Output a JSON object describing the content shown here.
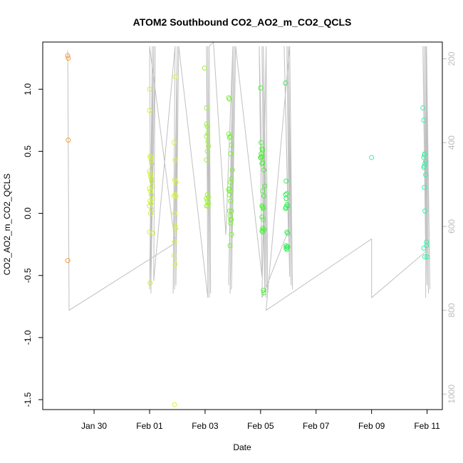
{
  "chart_data": {
    "type": "scatter",
    "title": "ATOM2 Southbound CO2_AO2_m_CO2_QCLS",
    "xlabel": "Date",
    "ylabel": "CO2_AO2_m_CO2_QCLS",
    "x_ticks": [
      "Jan 30",
      "Feb 01",
      "Feb 03",
      "Feb 05",
      "Feb 07",
      "Feb 09",
      "Feb 11"
    ],
    "x_tick_days": [
      30,
      32,
      34,
      36,
      38,
      40,
      42
    ],
    "xlim": [
      28.15,
      42.55
    ],
    "y_ticks": [
      -1.5,
      -1.0,
      -0.5,
      0.0,
      0.5,
      1.0
    ],
    "ylim": [
      -1.58,
      1.38
    ],
    "y2_ticks": [
      200,
      400,
      600,
      800,
      1000
    ],
    "y2lim": [
      1037,
      160
    ],
    "y2_color": "#bdbdbd",
    "series": [
      {
        "color": "#f59a3a",
        "x": [
          29.05,
          29.07,
          29.07,
          29.05
        ],
        "y": [
          1.27,
          1.25,
          0.59,
          -0.38
        ]
      },
      {
        "color": "#ccf03a",
        "x": [
          32.0,
          32.0,
          32.02,
          32.04,
          32.06,
          32.08,
          32.0,
          32.02,
          32.04,
          32.06,
          32.08,
          32.1,
          32.0,
          32.03,
          32.06,
          32.1,
          32.02,
          32.05,
          32.0,
          32.08,
          32.04,
          32.0,
          32.12,
          32.02
        ],
        "y": [
          1.0,
          0.83,
          0.46,
          0.45,
          0.42,
          0.4,
          0.34,
          0.32,
          0.3,
          0.28,
          0.26,
          0.22,
          0.2,
          0.18,
          0.15,
          0.12,
          0.1,
          0.08,
          0.06,
          0.03,
          0.0,
          -0.15,
          -0.16,
          -0.56
        ]
      },
      {
        "color": "#d8f43c",
        "x": [
          32.92,
          32.88,
          32.92,
          32.9,
          32.95,
          32.92,
          32.88,
          32.95,
          32.9,
          32.92,
          32.95,
          32.9,
          32.88,
          32.92,
          32.9
        ],
        "y": [
          1.1,
          0.57,
          0.43,
          0.27,
          0.25,
          0.15,
          0.14,
          0.14,
          0.0,
          -0.1,
          -0.12,
          -0.23,
          -0.34,
          -0.41,
          -1.54
        ]
      },
      {
        "color": "#9ef23c",
        "x": [
          33.98,
          34.05,
          34.05,
          34.08,
          34.1,
          34.05,
          34.1,
          34.12,
          34.08,
          34.05,
          34.08,
          34.12,
          34.05,
          34.08,
          34.12,
          34.1,
          34.05
        ],
        "y": [
          1.17,
          0.85,
          0.72,
          0.7,
          0.64,
          0.62,
          0.58,
          0.54,
          0.5,
          0.43,
          0.15,
          0.13,
          0.12,
          0.1,
          0.08,
          0.06,
          0.06
        ]
      },
      {
        "color": "#7bf03c",
        "x": [
          34.85,
          34.88,
          34.85,
          34.9,
          34.88,
          34.95,
          34.92,
          34.98,
          34.95,
          34.92,
          34.88,
          34.85,
          34.9,
          34.88,
          34.92,
          34.95,
          34.88,
          34.9,
          34.92,
          34.92,
          34.95,
          34.9,
          34.95
        ],
        "y": [
          0.93,
          0.92,
          0.64,
          0.62,
          0.61,
          0.55,
          0.48,
          0.35,
          0.28,
          0.25,
          0.2,
          0.19,
          0.18,
          0.15,
          0.1,
          0.02,
          0.02,
          -0.02,
          -0.05,
          -0.08,
          -0.17,
          -0.26,
          -0.05
        ]
      },
      {
        "color": "#4cee3c",
        "x": [
          36.0,
          36.02,
          36.05,
          36.08,
          36.02,
          36.05,
          36.0,
          36.02,
          36.08,
          36.05,
          36.12,
          36.15,
          36.08,
          36.12,
          36.05,
          36.08,
          36.1,
          36.05,
          36.1,
          36.08,
          36.12,
          36.05,
          36.08,
          36.1,
          36.12
        ],
        "y": [
          1.01,
          0.57,
          0.52,
          0.51,
          0.48,
          0.46,
          0.45,
          0.45,
          0.41,
          0.4,
          0.35,
          0.22,
          0.18,
          0.14,
          0.06,
          0.05,
          0.04,
          -0.03,
          -0.05,
          -0.12,
          -0.13,
          -0.14,
          -0.15,
          -0.62,
          -0.64
        ]
      },
      {
        "color": "#34ee55",
        "x": [
          36.9,
          36.92,
          36.95,
          36.9,
          36.92,
          36.95,
          36.98,
          36.92,
          36.9,
          36.95,
          36.98,
          36.92,
          36.95,
          36.98,
          36.92,
          36.95
        ],
        "y": [
          1.05,
          0.26,
          0.16,
          0.15,
          0.12,
          0.07,
          0.06,
          0.05,
          0.04,
          -0.15,
          -0.16,
          -0.26,
          -0.27,
          -0.27,
          -0.28,
          -0.29
        ]
      },
      {
        "color": "#3cf0a8",
        "x": [
          40.0,
          41.85,
          41.88,
          41.92,
          41.9,
          41.88,
          41.95,
          41.92,
          41.9,
          41.88,
          41.95,
          41.9,
          41.92,
          41.98,
          41.98,
          41.88,
          41.92,
          42.0
        ],
        "y": [
          0.45,
          0.85,
          0.75,
          0.48,
          0.47,
          0.45,
          0.42,
          0.4,
          0.38,
          0.37,
          0.31,
          0.21,
          0.02,
          -0.23,
          -0.26,
          -0.28,
          -0.35,
          -0.35
        ]
      }
    ],
    "altitude_line": {
      "color": "#c0c0c0",
      "x": [
        29.05,
        29.1,
        32.92,
        32.0,
        32.05,
        32.1,
        32.0,
        32.15,
        32.05,
        32.2,
        32.15,
        32.92,
        32.85,
        33.0,
        32.9,
        33.0,
        32.95,
        33.05,
        34.1,
        34.05,
        34.15,
        34.1,
        34.2,
        34.15,
        34.3,
        34.75,
        35.0,
        34.85,
        35.05,
        34.9,
        35.1,
        34.95,
        35.1,
        36.05,
        35.95,
        36.15,
        36.05,
        36.2,
        36.1,
        36.25,
        36.2,
        36.05,
        37.0,
        36.85,
        37.05,
        36.95,
        37.1,
        37.0,
        37.15,
        37.05,
        36.2,
        40.0,
        40.0,
        41.95,
        41.85,
        42.0,
        41.9,
        42.05,
        41.95,
        42.1,
        41.98,
        41.95
      ],
      "alt": [
        180,
        800,
        640,
        170,
        760,
        170,
        750,
        170,
        740,
        170,
        730,
        170,
        760,
        170,
        750,
        170,
        740,
        170,
        770,
        170,
        770,
        170,
        760,
        170,
        160,
        620,
        170,
        740,
        170,
        760,
        170,
        750,
        170,
        720,
        170,
        750,
        170,
        770,
        170,
        760,
        170,
        770,
        610,
        170,
        720,
        170,
        740,
        170,
        750,
        170,
        800,
        630,
        770,
        660,
        170,
        740,
        170,
        760,
        170,
        750,
        170,
        770
      ]
    }
  }
}
